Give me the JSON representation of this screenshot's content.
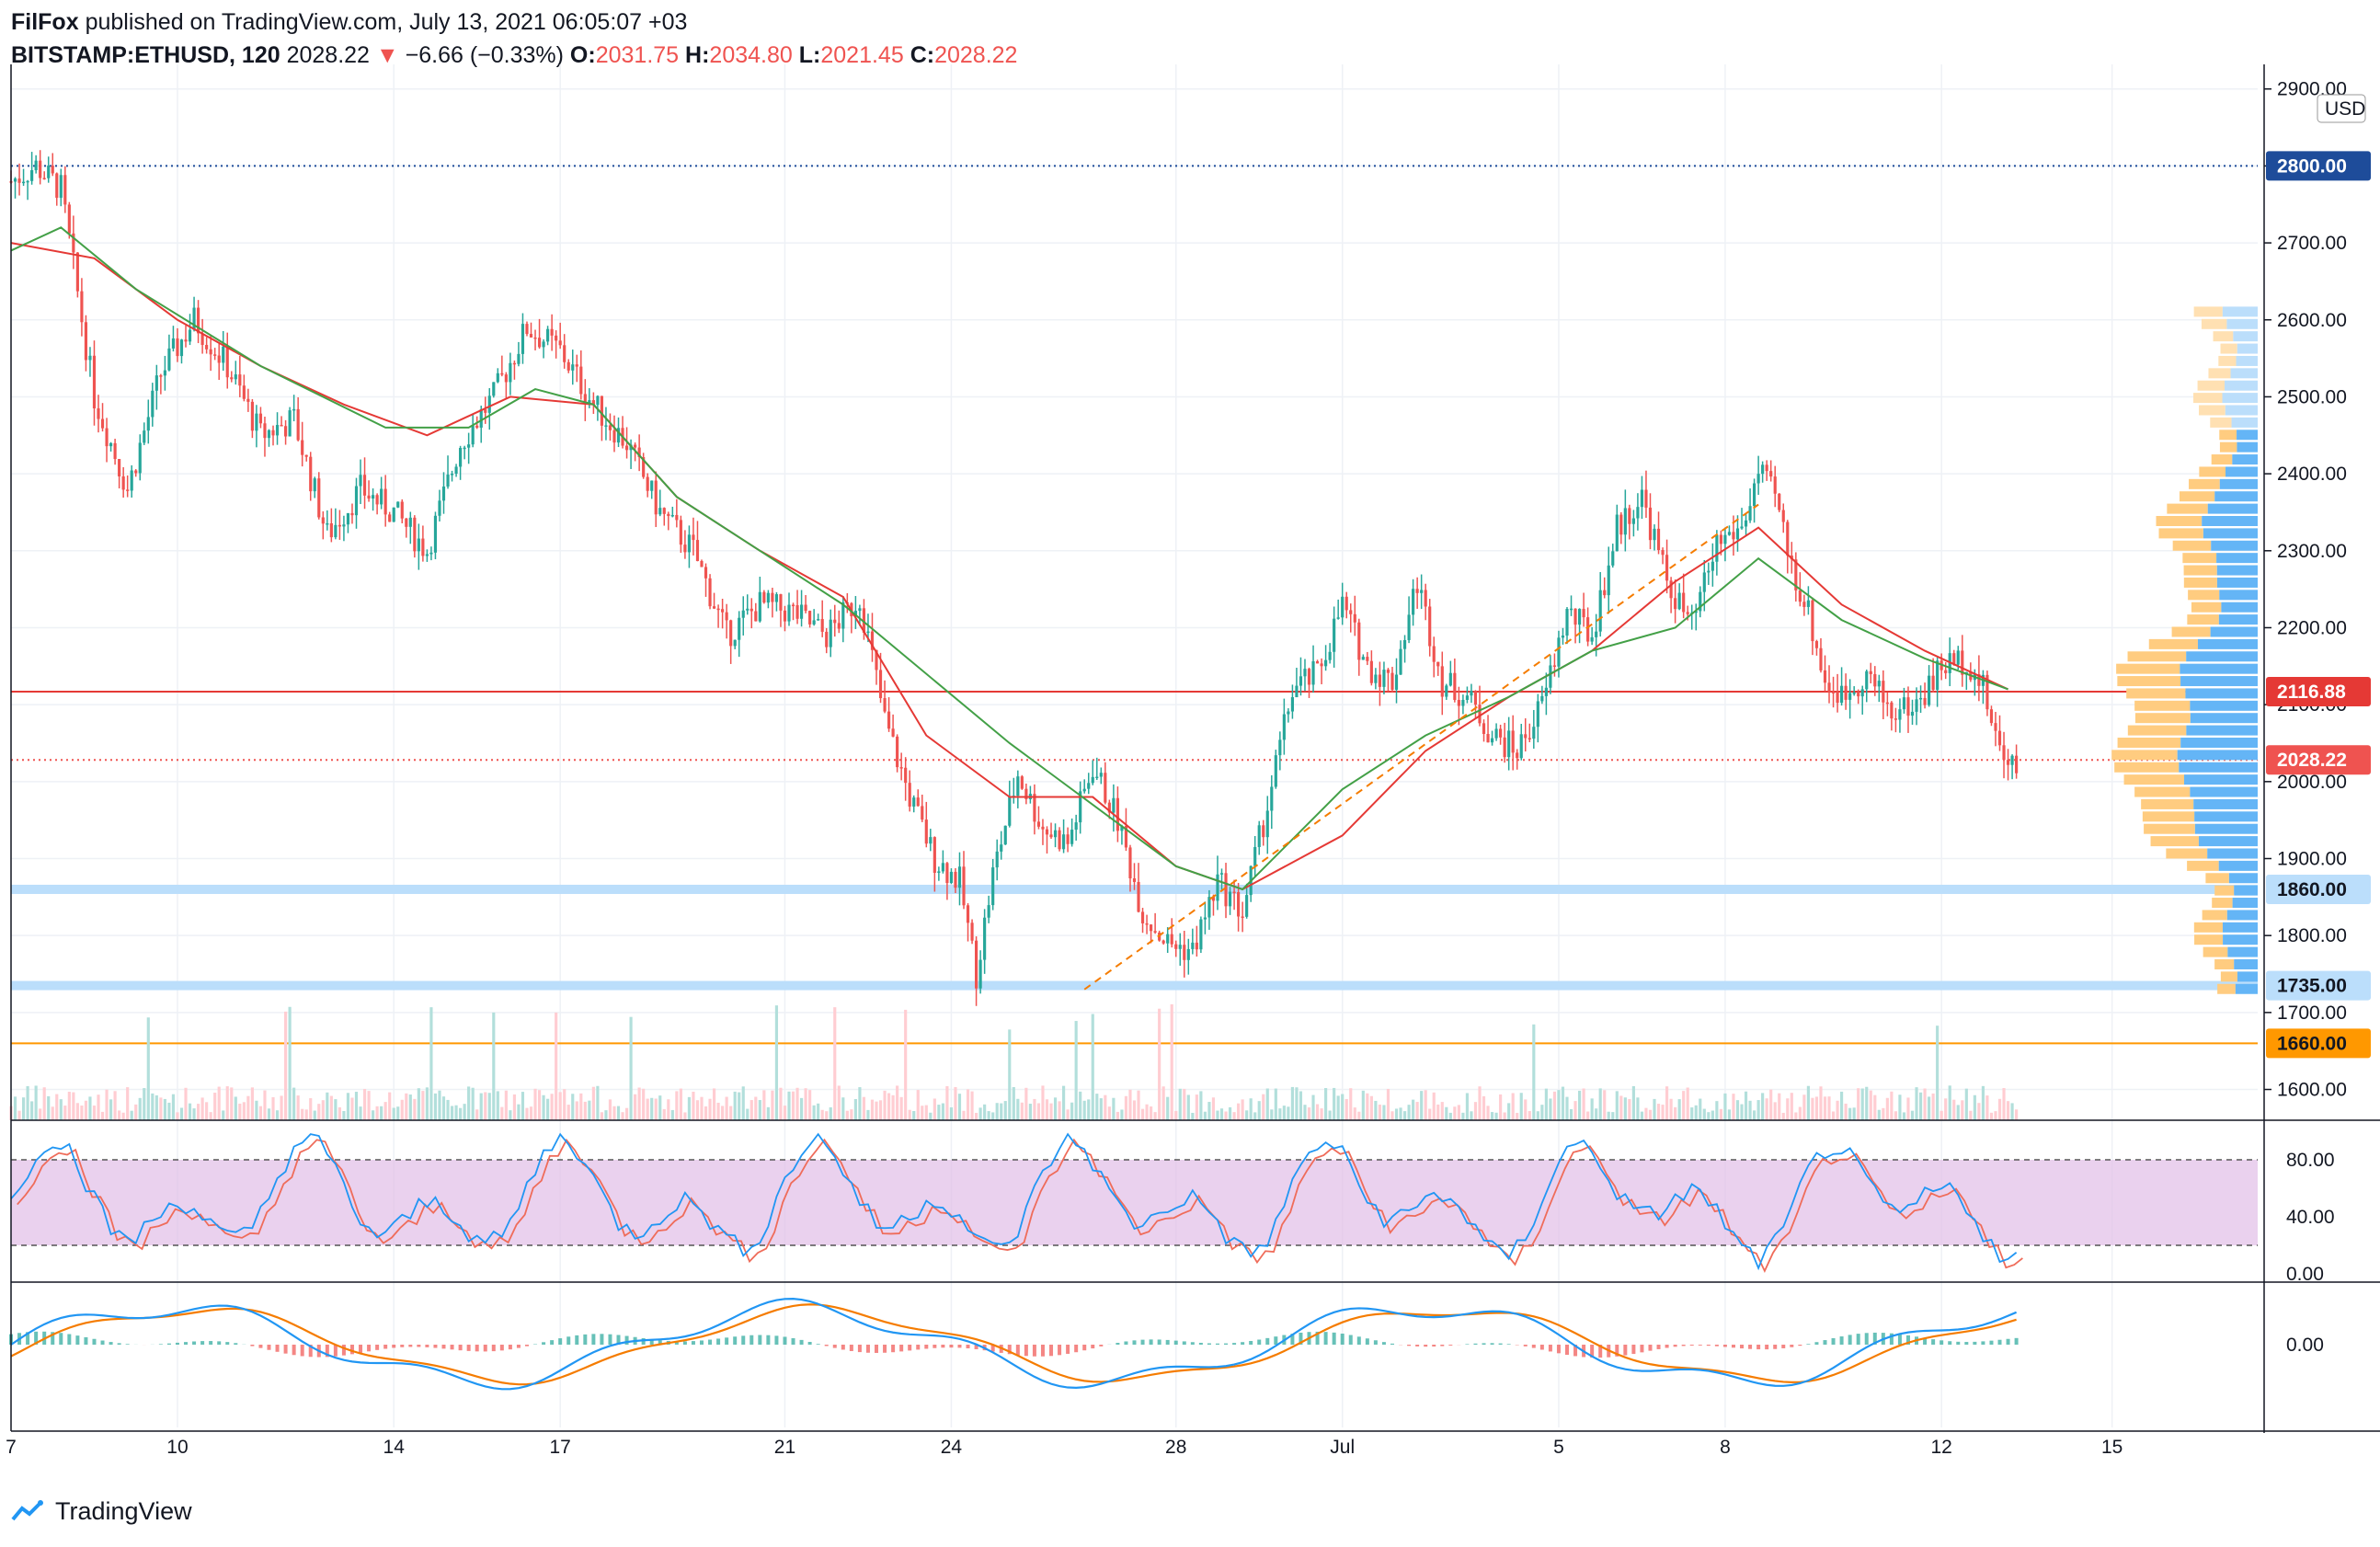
{
  "header": {
    "publisher": "FilFox",
    "published_text": "published on TradingView.com, July 13, 2021 06:05:07 +03",
    "symbol": "BITSTAMP:ETHUSD, 120",
    "last": "2028.22",
    "change_arrow": "▼",
    "change": "−6.66 (−0.33%)",
    "open_label": "O:",
    "open": "2031.75",
    "high_label": "H:",
    "high": "2034.80",
    "low_label": "L:",
    "low": "2021.45",
    "close_label": "C:",
    "close": "2028.22"
  },
  "footer": {
    "brand": "TradingView",
    "logo_icon": "tradingview-logo-icon"
  },
  "colors": {
    "up": "#26a69a",
    "down": "#ef5350",
    "ma_red": "#e53935",
    "ma_green": "#43a047",
    "trend": "#f57c00",
    "support": "#bbdefb",
    "resistance": "#e53935",
    "line_1660": "#ff9800",
    "line_2800": "#1e4c9a",
    "stoch_band": "#e1bee7",
    "stoch_k": "#2196f3",
    "stoch_d": "#ef6c5a",
    "macd": "#2196f3",
    "signal": "#f57c00"
  },
  "price_axis": {
    "currency": "USD",
    "ticks": [
      "2900.00",
      "2800.00",
      "2700.00",
      "2600.00",
      "2500.00",
      "2400.00",
      "2300.00",
      "2200.00",
      "2100.00",
      "2000.00",
      "1900.00",
      "1800.00",
      "1700.00",
      "1600.00"
    ]
  },
  "price_tags": [
    {
      "label": "2800.00",
      "color": "#1e4c9a",
      "text_color": "#ffffff"
    },
    {
      "label": "2116.88",
      "color": "#e53935",
      "text_color": "#ffffff"
    },
    {
      "label": "2028.22",
      "color": "#ef5350",
      "text_color": "#ffffff"
    },
    {
      "label": "1860.00",
      "color": "#bbdefb",
      "text_color": "#131722"
    },
    {
      "label": "1735.00",
      "color": "#bbdefb",
      "text_color": "#131722"
    },
    {
      "label": "1660.00",
      "color": "#ff9800",
      "text_color": "#131722"
    }
  ],
  "time_axis": [
    "7",
    "10",
    "14",
    "17",
    "21",
    "24",
    "28",
    "Jul",
    "5",
    "8",
    "12",
    "15"
  ],
  "stoch_axis": [
    "80.00",
    "40.00",
    "0.00"
  ],
  "macd_axis": [
    "0.00"
  ],
  "chart_data": {
    "type": "candlestick",
    "symbol": "BITSTAMP:ETHUSD",
    "interval_minutes": 120,
    "ylim": [
      1560,
      2920
    ],
    "horizontal_levels": [
      {
        "price": 2800.0,
        "style": "dotted",
        "color": "#1e4c9a"
      },
      {
        "price": 2116.88,
        "style": "solid",
        "color": "#e53935"
      },
      {
        "price": 2028.22,
        "style": "dotted",
        "color": "#ef5350"
      },
      {
        "price": 1860.0,
        "style": "band",
        "color": "#bbdefb"
      },
      {
        "price": 1735.0,
        "style": "band",
        "color": "#bbdefb"
      },
      {
        "price": 1660.0,
        "style": "solid",
        "color": "#ff9800"
      }
    ],
    "price_path": [
      [
        0,
        2780
      ],
      [
        6,
        2800
      ],
      [
        12,
        2770
      ],
      [
        20,
        2500
      ],
      [
        28,
        2380
      ],
      [
        36,
        2530
      ],
      [
        44,
        2600
      ],
      [
        52,
        2540
      ],
      [
        60,
        2450
      ],
      [
        68,
        2470
      ],
      [
        76,
        2320
      ],
      [
        84,
        2380
      ],
      [
        92,
        2350
      ],
      [
        100,
        2300
      ],
      [
        108,
        2440
      ],
      [
        116,
        2500
      ],
      [
        124,
        2590
      ],
      [
        132,
        2560
      ],
      [
        140,
        2490
      ],
      [
        148,
        2440
      ],
      [
        156,
        2350
      ],
      [
        164,
        2300
      ],
      [
        172,
        2190
      ],
      [
        180,
        2230
      ],
      [
        188,
        2220
      ],
      [
        196,
        2190
      ],
      [
        204,
        2240
      ],
      [
        210,
        2080
      ],
      [
        216,
        1980
      ],
      [
        222,
        1900
      ],
      [
        228,
        1870
      ],
      [
        232,
        1750
      ],
      [
        236,
        1880
      ],
      [
        242,
        2010
      ],
      [
        248,
        1940
      ],
      [
        254,
        1920
      ],
      [
        260,
        2020
      ],
      [
        266,
        1950
      ],
      [
        272,
        1830
      ],
      [
        278,
        1790
      ],
      [
        284,
        1780
      ],
      [
        290,
        1870
      ],
      [
        296,
        1830
      ],
      [
        302,
        1970
      ],
      [
        308,
        2120
      ],
      [
        314,
        2140
      ],
      [
        320,
        2230
      ],
      [
        326,
        2150
      ],
      [
        332,
        2130
      ],
      [
        338,
        2260
      ],
      [
        344,
        2130
      ],
      [
        350,
        2110
      ],
      [
        356,
        2060
      ],
      [
        362,
        2040
      ],
      [
        368,
        2100
      ],
      [
        374,
        2220
      ],
      [
        380,
        2190
      ],
      [
        386,
        2330
      ],
      [
        392,
        2370
      ],
      [
        398,
        2260
      ],
      [
        404,
        2200
      ],
      [
        410,
        2310
      ],
      [
        416,
        2330
      ],
      [
        420,
        2400
      ],
      [
        424,
        2370
      ],
      [
        428,
        2280
      ],
      [
        432,
        2220
      ],
      [
        436,
        2130
      ],
      [
        440,
        2110
      ],
      [
        446,
        2140
      ],
      [
        452,
        2090
      ],
      [
        458,
        2100
      ],
      [
        464,
        2150
      ],
      [
        470,
        2160
      ],
      [
        474,
        2120
      ],
      [
        478,
        2040
      ],
      [
        482,
        2028
      ]
    ],
    "ma_red": [
      [
        0,
        2700
      ],
      [
        20,
        2680
      ],
      [
        40,
        2600
      ],
      [
        60,
        2540
      ],
      [
        80,
        2490
      ],
      [
        100,
        2450
      ],
      [
        120,
        2500
      ],
      [
        140,
        2490
      ],
      [
        160,
        2370
      ],
      [
        180,
        2300
      ],
      [
        200,
        2240
      ],
      [
        220,
        2060
      ],
      [
        240,
        1980
      ],
      [
        260,
        1980
      ],
      [
        280,
        1890
      ],
      [
        296,
        1860
      ],
      [
        320,
        1930
      ],
      [
        340,
        2040
      ],
      [
        360,
        2110
      ],
      [
        380,
        2170
      ],
      [
        400,
        2260
      ],
      [
        420,
        2330
      ],
      [
        440,
        2230
      ],
      [
        460,
        2170
      ],
      [
        480,
        2120
      ]
    ],
    "ma_green": [
      [
        0,
        2690
      ],
      [
        12,
        2720
      ],
      [
        30,
        2640
      ],
      [
        60,
        2540
      ],
      [
        90,
        2460
      ],
      [
        110,
        2460
      ],
      [
        126,
        2510
      ],
      [
        140,
        2490
      ],
      [
        160,
        2370
      ],
      [
        180,
        2300
      ],
      [
        200,
        2230
      ],
      [
        240,
        2050
      ],
      [
        280,
        1890
      ],
      [
        296,
        1860
      ],
      [
        320,
        1990
      ],
      [
        340,
        2060
      ],
      [
        360,
        2110
      ],
      [
        380,
        2170
      ],
      [
        400,
        2200
      ],
      [
        420,
        2290
      ],
      [
        440,
        2210
      ],
      [
        460,
        2160
      ],
      [
        480,
        2120
      ]
    ],
    "trendline": [
      [
        258,
        1730
      ],
      [
        420,
        2360
      ]
    ],
    "xlim": [
      0,
      540
    ],
    "time_tick_x": [
      0,
      40,
      92,
      132,
      186,
      226,
      280,
      320,
      372,
      412,
      464,
      505
    ]
  }
}
